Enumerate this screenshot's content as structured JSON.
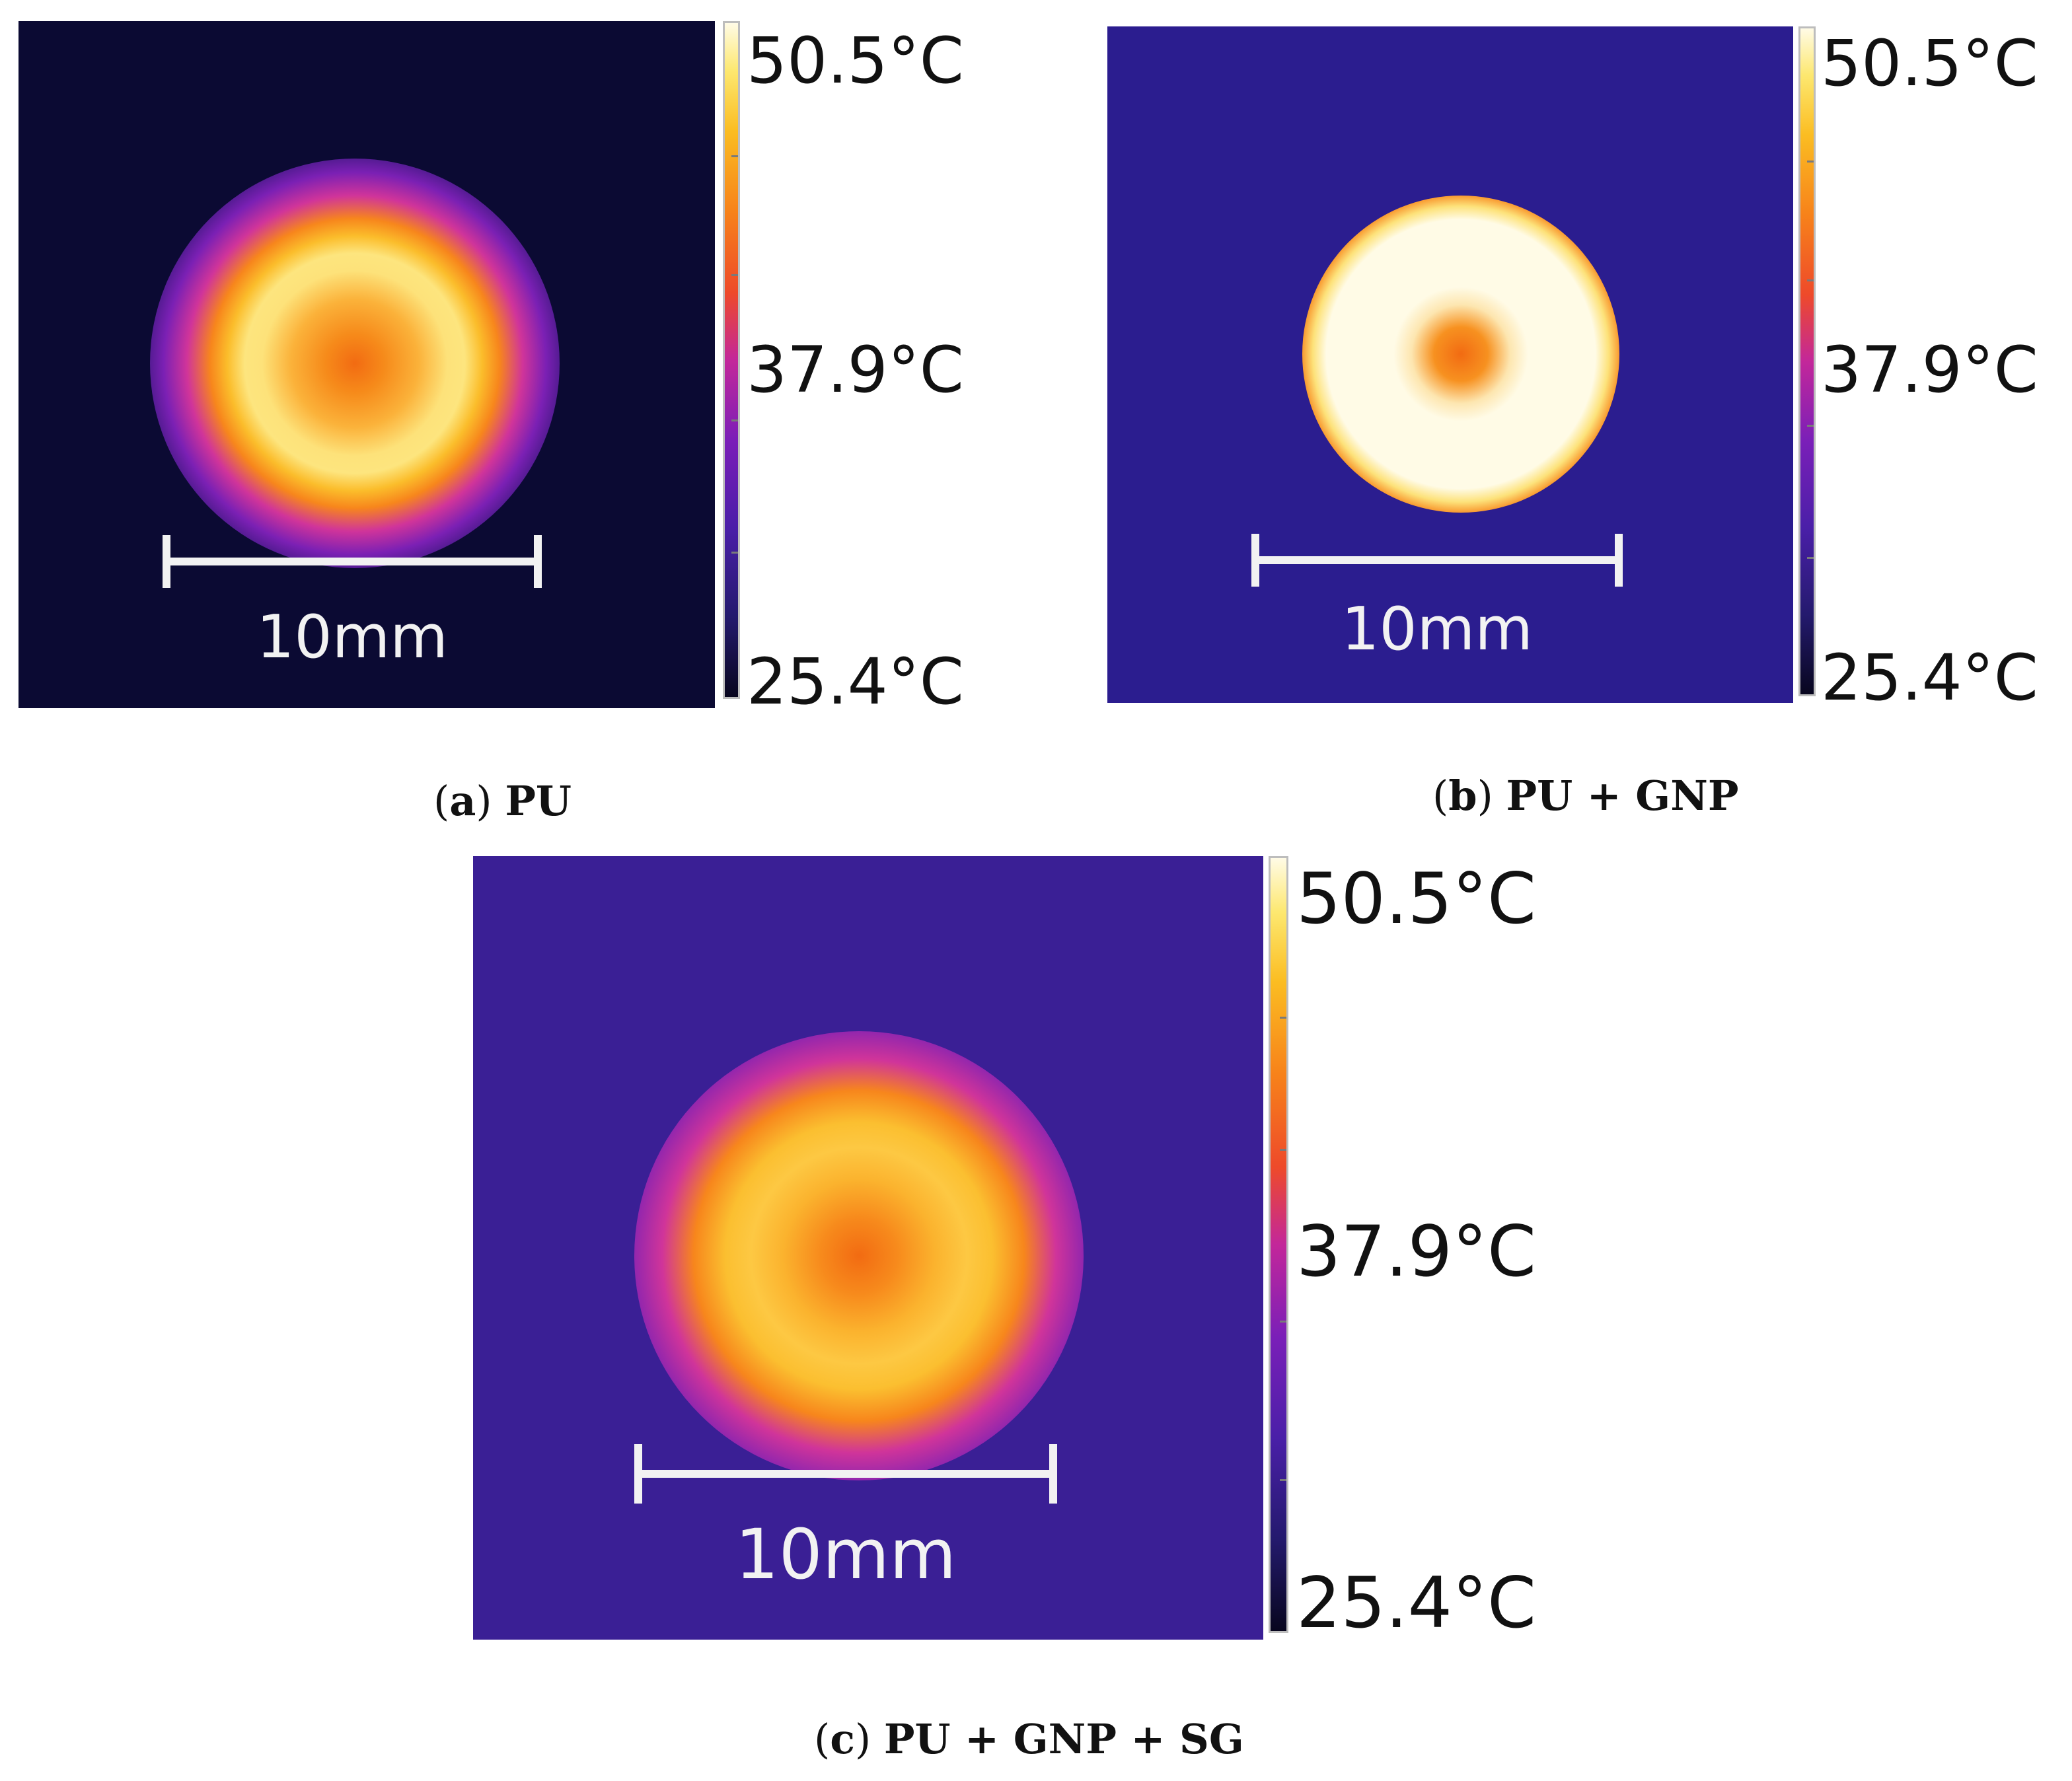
{
  "panels": [
    {
      "id": "a",
      "scale_label": "10mm",
      "colorbar": {
        "max": "50.5°C",
        "mid": "37.9°C",
        "min": "25.4°C"
      },
      "caption": {
        "letter": "a",
        "text": "PU"
      },
      "colors": {
        "background": "#0b0a33"
      }
    },
    {
      "id": "b",
      "scale_label": "10mm",
      "colorbar": {
        "max": "50.5°C",
        "mid": "37.9°C",
        "min": "25.4°C"
      },
      "caption": {
        "letter": "b",
        "text": "PU + GNP"
      },
      "colors": {
        "background": "#2b1d8f"
      }
    },
    {
      "id": "c",
      "scale_label": "10mm",
      "colorbar": {
        "max": "50.5°C",
        "mid": "37.9°C",
        "min": "25.4°C"
      },
      "caption": {
        "letter": "c",
        "text": "PU + GNP + SG"
      },
      "colors": {
        "background": "#3a1f95"
      }
    }
  ]
}
